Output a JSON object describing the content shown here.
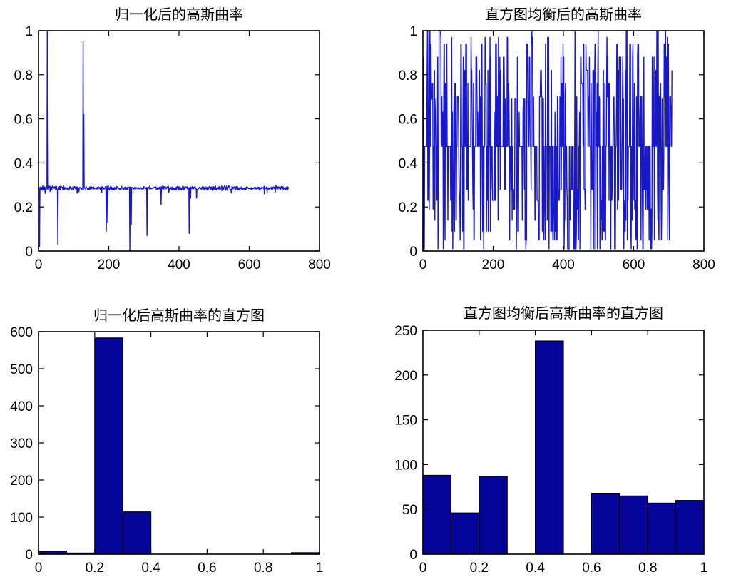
{
  "figure": {
    "background": "#fefefe",
    "axis_color": "#000000",
    "tick_label_color": "#000000",
    "line_color": "#1717ce",
    "bar_fill": "#050599",
    "bar_edge": "#000000"
  },
  "chart_data": [
    {
      "id": "normalized-gaussian-curvature",
      "type": "line",
      "title": "归一化后的高斯曲率",
      "xlim": [
        0,
        800
      ],
      "ylim": [
        0,
        1
      ],
      "xticks": [
        0,
        200,
        400,
        600,
        800
      ],
      "yticks": [
        0,
        0.2,
        0.4,
        0.6,
        0.8,
        1
      ],
      "grid": false,
      "legend": "none",
      "n_points": 712,
      "baseline": 0.285,
      "noise_amp": 0.011,
      "seed": 42,
      "outliers": [
        [
          1,
          0.13
        ],
        [
          3,
          0.02
        ],
        [
          25,
          1.0
        ],
        [
          27,
          0.635
        ],
        [
          55,
          0.03
        ],
        [
          127,
          0.95
        ],
        [
          129,
          0.62
        ],
        [
          193,
          0.09
        ],
        [
          197,
          0.13
        ],
        [
          260,
          0.0
        ],
        [
          264,
          0.12
        ],
        [
          309,
          0.07
        ],
        [
          349,
          0.21
        ],
        [
          429,
          0.08
        ],
        [
          433,
          0.24
        ],
        [
          450,
          0.24
        ]
      ]
    },
    {
      "id": "equalized-gaussian-curvature",
      "type": "line",
      "title": "直方图均衡后的高斯曲率",
      "xlim": [
        0,
        800
      ],
      "ylim": [
        0,
        1
      ],
      "xticks": [
        0,
        200,
        400,
        600,
        800
      ],
      "yticks": [
        0,
        0.2,
        0.4,
        0.6,
        0.8,
        1
      ],
      "grid": false,
      "legend": "none",
      "n_points": 710,
      "seed": 1234,
      "persistence": 0.28,
      "levels": [
        0.01,
        0.05,
        0.09,
        0.14,
        0.19,
        0.23,
        0.28,
        0.475,
        0.63,
        0.69,
        0.7,
        0.76,
        0.82,
        0.88,
        0.94,
        0.97,
        1.0
      ],
      "level_weights": [
        30,
        30,
        28,
        23,
        23,
        44,
        43,
        238,
        34,
        34,
        32,
        33,
        28,
        29,
        20,
        20,
        20
      ]
    },
    {
      "id": "normalized-curvature-histogram",
      "type": "bar",
      "title": "归一化后高斯曲率的直方图",
      "bin_edges": [
        0,
        0.1,
        0.2,
        0.3,
        0.4,
        0.5,
        0.6,
        0.7,
        0.8,
        0.9,
        1.0
      ],
      "values": [
        8,
        3,
        583,
        114,
        0,
        0,
        0,
        0,
        0,
        4
      ],
      "xlim": [
        0,
        1
      ],
      "ylim": [
        0,
        600
      ],
      "xticks": [
        0,
        0.2,
        0.4,
        0.6,
        0.8,
        1
      ],
      "yticks": [
        0,
        100,
        200,
        300,
        400,
        500,
        600
      ],
      "grid": false,
      "legend": "none"
    },
    {
      "id": "equalized-curvature-histogram",
      "type": "bar",
      "title": "直方图均衡后高斯曲率的直方图",
      "bin_edges": [
        0,
        0.1,
        0.2,
        0.3,
        0.4,
        0.5,
        0.6,
        0.7,
        0.8,
        0.9,
        1.0
      ],
      "values": [
        88,
        46,
        87,
        0,
        238,
        0,
        68,
        65,
        57,
        60
      ],
      "xlim": [
        0,
        1
      ],
      "ylim": [
        0,
        250
      ],
      "xticks": [
        0,
        0.2,
        0.4,
        0.6,
        0.8,
        1
      ],
      "yticks": [
        0,
        50,
        100,
        150,
        200,
        250
      ],
      "grid": false,
      "legend": "none"
    }
  ]
}
